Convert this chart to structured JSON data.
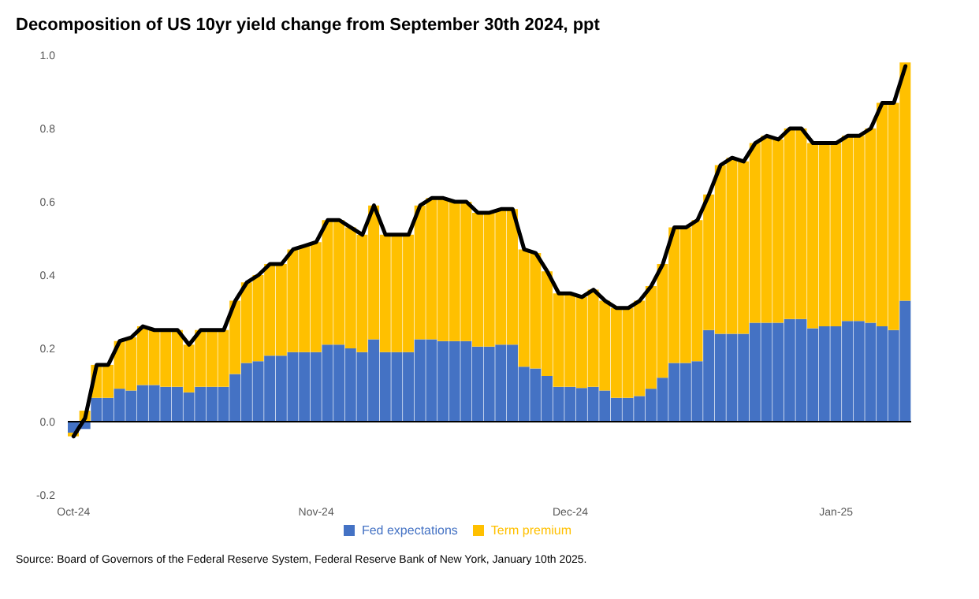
{
  "chart_data": {
    "type": "bar",
    "title": "Decomposition of US 10yr yield change from September 30th 2024, ppt",
    "categories": [
      "Oct-24",
      null,
      null,
      null,
      null,
      null,
      null,
      null,
      null,
      null,
      null,
      null,
      null,
      null,
      null,
      null,
      null,
      null,
      null,
      null,
      null,
      "Nov-24",
      null,
      null,
      null,
      null,
      null,
      null,
      null,
      null,
      null,
      null,
      null,
      null,
      null,
      null,
      null,
      null,
      null,
      null,
      null,
      null,
      null,
      "Dec-24",
      null,
      null,
      null,
      null,
      null,
      null,
      null,
      null,
      null,
      null,
      null,
      null,
      null,
      null,
      null,
      null,
      null,
      null,
      null,
      null,
      null,
      null,
      "Jan-25",
      null,
      null,
      null,
      null,
      null,
      null
    ],
    "series": [
      {
        "name": "Fed expectations",
        "color": "#4472c4",
        "values": [
          -0.03,
          -0.02,
          0.065,
          0.065,
          0.09,
          0.085,
          0.1,
          0.1,
          0.095,
          0.095,
          0.08,
          0.095,
          0.095,
          0.095,
          0.13,
          0.16,
          0.165,
          0.18,
          0.18,
          0.19,
          0.19,
          0.19,
          0.21,
          0.21,
          0.2,
          0.19,
          0.225,
          0.19,
          0.19,
          0.19,
          0.225,
          0.225,
          0.22,
          0.22,
          0.22,
          0.205,
          0.205,
          0.21,
          0.21,
          0.15,
          0.145,
          0.125,
          0.095,
          0.095,
          0.092,
          0.095,
          0.085,
          0.065,
          0.065,
          0.07,
          0.09,
          0.12,
          0.16,
          0.16,
          0.165,
          0.25,
          0.24,
          0.24,
          0.24,
          0.27,
          0.27,
          0.27,
          0.28,
          0.28,
          0.255,
          0.26,
          0.26,
          0.275,
          0.275,
          0.27,
          0.26,
          0.25,
          0.33
        ]
      },
      {
        "name": "Term premium",
        "color": "#ffc000",
        "values": [
          -0.01,
          0.03,
          0.09,
          0.09,
          0.13,
          0.145,
          0.16,
          0.15,
          0.155,
          0.155,
          0.13,
          0.155,
          0.155,
          0.155,
          0.2,
          0.22,
          0.235,
          0.25,
          0.25,
          0.28,
          0.29,
          0.3,
          0.34,
          0.34,
          0.33,
          0.32,
          0.365,
          0.32,
          0.32,
          0.32,
          0.365,
          0.385,
          0.39,
          0.38,
          0.38,
          0.365,
          0.365,
          0.37,
          0.37,
          0.32,
          0.315,
          0.285,
          0.255,
          0.255,
          0.248,
          0.265,
          0.245,
          0.245,
          0.245,
          0.26,
          0.28,
          0.31,
          0.37,
          0.37,
          0.385,
          0.37,
          0.46,
          0.48,
          0.47,
          0.49,
          0.51,
          0.5,
          0.52,
          0.52,
          0.505,
          0.5,
          0.5,
          0.505,
          0.505,
          0.53,
          0.61,
          0.62,
          0.65
        ]
      },
      {
        "type": "line",
        "color": "#000000",
        "values": [
          -0.04,
          0.01,
          0.155,
          0.155,
          0.22,
          0.23,
          0.26,
          0.25,
          0.25,
          0.25,
          0.21,
          0.25,
          0.25,
          0.25,
          0.33,
          0.38,
          0.4,
          0.43,
          0.43,
          0.47,
          0.48,
          0.49,
          0.55,
          0.55,
          0.53,
          0.51,
          0.59,
          0.51,
          0.51,
          0.51,
          0.59,
          0.61,
          0.61,
          0.6,
          0.6,
          0.57,
          0.57,
          0.58,
          0.58,
          0.47,
          0.46,
          0.41,
          0.35,
          0.35,
          0.34,
          0.36,
          0.33,
          0.31,
          0.31,
          0.33,
          0.37,
          0.43,
          0.53,
          0.53,
          0.55,
          0.62,
          0.7,
          0.72,
          0.71,
          0.76,
          0.78,
          0.77,
          0.8,
          0.8,
          0.76,
          0.76,
          0.76,
          0.78,
          0.78,
          0.8,
          0.87,
          0.87,
          0.97
        ]
      }
    ],
    "stacked": true,
    "ylim": [
      -0.2,
      1.0
    ],
    "yticks": [
      {
        "value": -0.2,
        "label": "-0.2"
      },
      {
        "value": 0,
        "label": "0.0"
      },
      0.2,
      0.4,
      0.6,
      0.8,
      {
        "value": 1.0,
        "label": "1.0"
      }
    ],
    "ref_lines": [
      {
        "axis": "y",
        "value": 0,
        "color": "#000000"
      }
    ],
    "grid": false,
    "legend": "bottom",
    "annotations": [
      "Source: Board of Governors of the Federal Reserve System, Federal Reserve Bank of New York, January 10th 2025."
    ]
  }
}
